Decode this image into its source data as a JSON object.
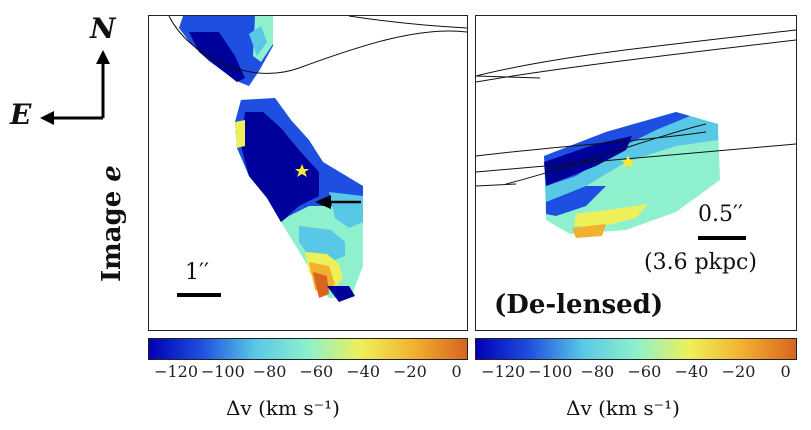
{
  "compass": {
    "north": "N",
    "east": "E"
  },
  "row_label": {
    "prefix": "Image ",
    "id": "e"
  },
  "left_panel": {
    "scale_label": "1′′"
  },
  "right_panel": {
    "scale_label": "0.5′′",
    "scale_physical": "(3.6 pkpc)",
    "tag": "(De-lensed)"
  },
  "colorbar": {
    "ticks": [
      "−120",
      "−100",
      "−80",
      "−60",
      "−40",
      "−20",
      "0"
    ],
    "tick_values": [
      -120,
      -100,
      -80,
      -60,
      -40,
      -20,
      0
    ],
    "range": [
      -132,
      4
    ],
    "label": "Δv (km s⁻¹)",
    "colors": [
      "#0000b4",
      "#1f4fe0",
      "#59c8e6",
      "#8ef0cc",
      "#eef05a",
      "#f2b030",
      "#d86420"
    ]
  },
  "colors": {
    "star": "#ffe833",
    "axis": "#222222"
  }
}
